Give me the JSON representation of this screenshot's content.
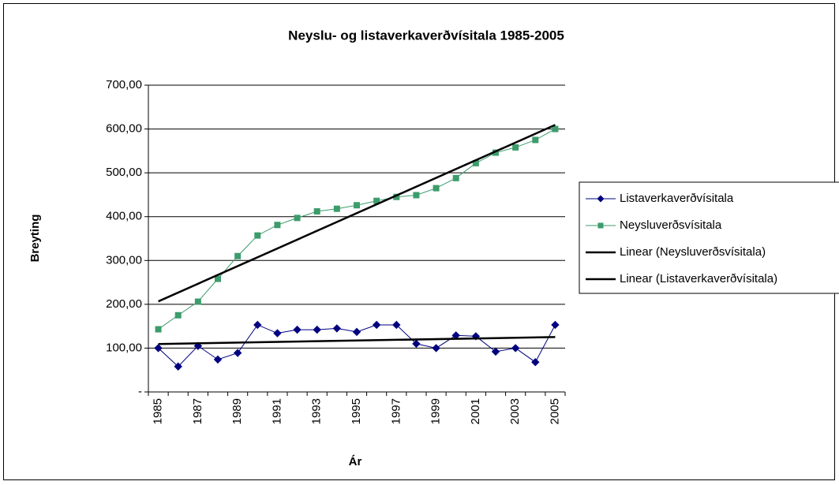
{
  "chart_data": {
    "type": "line",
    "title": "Neyslu- og listaverkaverðvísitala 1985-2005",
    "x_label": "Ár",
    "y_label": "Breyting",
    "categories": [
      "1985",
      null,
      "1987",
      null,
      "1989",
      null,
      "1991",
      null,
      "1993",
      null,
      "1995",
      null,
      "1997",
      null,
      "1999",
      null,
      "2001",
      null,
      "2003",
      null,
      "2005"
    ],
    "series": [
      {
        "name": "Listaverkaverðvísitala",
        "color": "#000080",
        "marker": "diamond",
        "values": [
          100,
          58,
          105,
          74,
          89,
          153,
          134,
          142,
          142,
          145,
          137,
          153,
          153,
          110,
          100,
          129,
          127,
          92,
          100,
          68,
          153
        ]
      },
      {
        "name": "Neysluverðsvísitala",
        "color": "#3c9c6c",
        "marker": "square",
        "values": [
          143,
          175,
          206,
          258,
          310,
          357,
          381,
          397,
          412,
          418,
          426,
          436,
          445,
          449,
          465,
          488,
          522,
          546,
          558,
          575,
          600
        ]
      }
    ],
    "trendlines": [
      {
        "name": "Linear (Neysluverðsvísitala)",
        "color": "#000000",
        "of": 1
      },
      {
        "name": "Linear (Listaverkaverðvísitala)",
        "color": "#000000",
        "of": 0
      }
    ],
    "ylim": [
      0,
      700
    ],
    "yticks": [
      {
        "value": 0,
        "label": "-"
      },
      {
        "value": 100,
        "label": "100,00"
      },
      {
        "value": 200,
        "label": "200,00"
      },
      {
        "value": 300,
        "label": "300,00"
      },
      {
        "value": 400,
        "label": "400,00"
      },
      {
        "value": 500,
        "label": "500,00"
      },
      {
        "value": 600,
        "label": "600,00"
      },
      {
        "value": 700,
        "label": "700,00"
      }
    ],
    "grid": true,
    "legend": "right"
  }
}
